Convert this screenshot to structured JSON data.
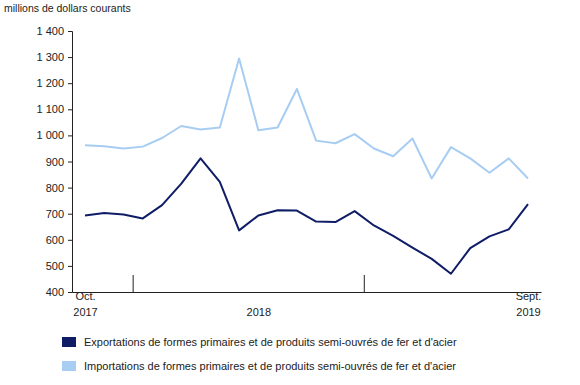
{
  "chart_data": {
    "type": "line",
    "y_label": "millions de dollars courants",
    "categories": [
      "Oct. 2017",
      null,
      null,
      null,
      null,
      null,
      null,
      null,
      null,
      "2018",
      null,
      null,
      null,
      null,
      null,
      null,
      null,
      null,
      null,
      null,
      null,
      null,
      null,
      "Sept. 2019"
    ],
    "series": [
      {
        "name": "Exportations de formes primaires et de produits semi-ouvrés de fer et d'acier",
        "color": "#0f1c66",
        "values": [
          693,
          703,
          697,
          682,
          733,
          815,
          912,
          822,
          636,
          693,
          713,
          712,
          670,
          668,
          710,
          655,
          615,
          570,
          527,
          470,
          568,
          613,
          640,
          737
        ]
      },
      {
        "name": "Importations de formes primaires et de produits semi-ouvrés de fer et d'acier",
        "color": "#a7cdf2",
        "values": [
          962,
          958,
          950,
          957,
          990,
          1036,
          1023,
          1030,
          1295,
          1020,
          1030,
          1178,
          980,
          970,
          1005,
          950,
          920,
          988,
          835,
          955,
          912,
          857,
          912,
          835
        ]
      }
    ],
    "ylim": [
      400,
      1400
    ],
    "yticks": [
      400,
      500,
      600,
      700,
      800,
      900,
      {
        "value": 1000,
        "label": "1 000"
      },
      {
        "value": 1100,
        "label": "1 100"
      },
      {
        "value": 1200,
        "label": "1 200"
      },
      {
        "value": 1300,
        "label": "1 300"
      },
      {
        "value": 1400,
        "label": "1 400"
      }
    ],
    "grid": false,
    "legend": "bottom"
  }
}
